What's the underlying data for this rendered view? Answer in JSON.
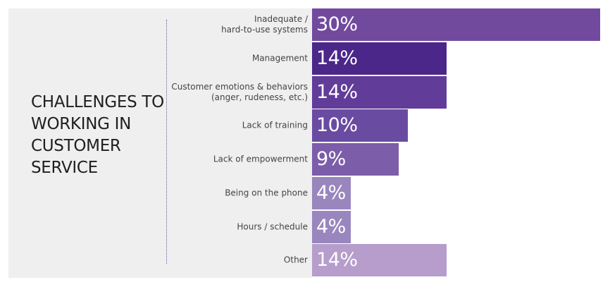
{
  "chart_data": {
    "type": "bar",
    "orientation": "horizontal",
    "title": "CHALLENGES TO WORKING IN CUSTOMER SERVICE",
    "categories": [
      [
        "Inadequate /",
        "hard-to-use systems"
      ],
      [
        "Management"
      ],
      [
        "Customer emotions & behaviors",
        "(anger, rudeness, etc.)"
      ],
      [
        "Lack of training"
      ],
      [
        "Lack of empowerment"
      ],
      [
        "Being on the phone"
      ],
      [
        "Hours / schedule"
      ],
      [
        "Other"
      ]
    ],
    "values": [
      30,
      14,
      14,
      10,
      9,
      4,
      4,
      14
    ],
    "value_labels": [
      "30%",
      "14%",
      "14%",
      "10%",
      "9%",
      "4%",
      "4%",
      "14%"
    ],
    "xlim": [
      0,
      30
    ],
    "unit": "%",
    "grid": false,
    "legend": "none",
    "colors": [
      "#714a9e",
      "#4b2789",
      "#613d99",
      "#6a4ba2",
      "#7c5da9",
      "#9986bd",
      "#9a86be",
      "#b69dcb"
    ]
  }
}
